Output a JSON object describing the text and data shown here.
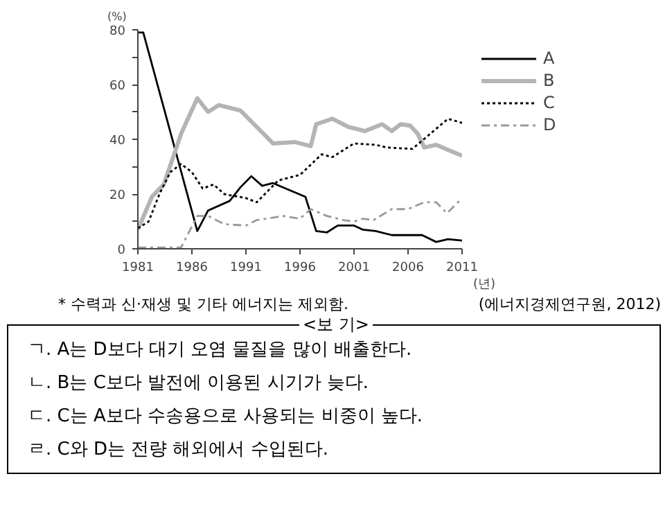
{
  "chart_data": {
    "type": "line",
    "ylabel": "(%)",
    "xlabel": "(년)",
    "xlim": [
      1981,
      2011
    ],
    "ylim": [
      0,
      80
    ],
    "xticks": [
      1981,
      1986,
      1991,
      1996,
      2001,
      2006,
      2011
    ],
    "yticks": [
      0,
      {
        "value": 10,
        "label": null
      },
      20,
      {
        "value": 30,
        "label": null
      },
      40,
      {
        "value": 50,
        "label": null
      },
      60,
      {
        "value": 70,
        "label": null
      },
      80
    ],
    "grid": false,
    "legend": "top right",
    "series": [
      {
        "name": "A",
        "color": "#000000",
        "line_style": "solid",
        "x": [
          1981,
          1981.5,
          1986.5,
          1987.5,
          1989.5,
          1990.5,
          1991.5,
          1992.5,
          1993.5,
          1996.5,
          1997.5,
          1998.5,
          1999.5,
          2001,
          2001.8,
          2003,
          2004.5,
          2007.3,
          2008.6,
          2009.7,
          2011
        ],
        "values": [
          79,
          79,
          6.5,
          14,
          17.5,
          22.5,
          26.5,
          23,
          24,
          19,
          6.5,
          6,
          8.5,
          8.5,
          7,
          6.5,
          5,
          5,
          2.5,
          3.5,
          3
        ]
      },
      {
        "name": "B",
        "color": "#b4b4b4",
        "line_style": "solid",
        "x": [
          1981,
          1982.3,
          1983.4,
          1985,
          1986.5,
          1987.5,
          1988.5,
          1990.5,
          1992,
          1993.5,
          1995.5,
          1997,
          1997.5,
          1999,
          2000.5,
          2002,
          2003.6,
          2004.5,
          2005.3,
          2006.2,
          2006.9,
          2007.5,
          2008.6,
          2011
        ],
        "values": [
          7,
          19,
          23.5,
          42,
          55,
          50,
          52.5,
          50.5,
          44.5,
          38.5,
          39,
          37.5,
          45.5,
          47.5,
          44.5,
          43,
          45.5,
          43,
          45.5,
          45,
          42,
          37,
          38,
          34
        ]
      },
      {
        "name": "C",
        "color": "#000000",
        "line_style": "dotted",
        "x": [
          1981,
          1982,
          1983,
          1984,
          1985,
          1986,
          1987,
          1988,
          1989,
          1991,
          1992,
          1994,
          1996,
          1998,
          1999,
          2001,
          2003,
          2004,
          2006.4,
          2009.7,
          2011
        ],
        "values": [
          7.5,
          10,
          20,
          28,
          31,
          28,
          22,
          23.5,
          20,
          18.5,
          17,
          25,
          27,
          34.5,
          33.5,
          38.5,
          38,
          37,
          36.5,
          47.5,
          46
        ]
      },
      {
        "name": "D",
        "color": "#9a9a9a",
        "line_style": "dashdot",
        "x": [
          1981,
          1985,
          1986.5,
          1987.5,
          1989,
          1991,
          1992,
          1994.5,
          1996,
          1997,
          1998.5,
          2000,
          2001,
          2001.8,
          2002.8,
          2004.5,
          2006,
          2007.5,
          2008.6,
          2009.6,
          2011
        ],
        "values": [
          0.5,
          0.5,
          12,
          12,
          9,
          8.5,
          10.5,
          12,
          11,
          14.5,
          12,
          10.5,
          10,
          11,
          10.5,
          14.5,
          14.5,
          17,
          17,
          13,
          18.5
        ]
      }
    ],
    "annotations": [
      "* 수력과 신·재생 및 기타 에너지는 제외함.",
      "(에너지경제연구원, 2012)",
      "<보 기>",
      "ㄱ. A는 D보다 대기 오염 물질을 많이 배출한다.",
      "ㄴ. B는 C보다 발전에 이용된 시기가 늦다.",
      "ㄷ. C는 A보다 수송용으로 사용되는 비중이 높다.",
      "ㄹ. C와 D는 전량 해외에서 수입된다."
    ]
  }
}
